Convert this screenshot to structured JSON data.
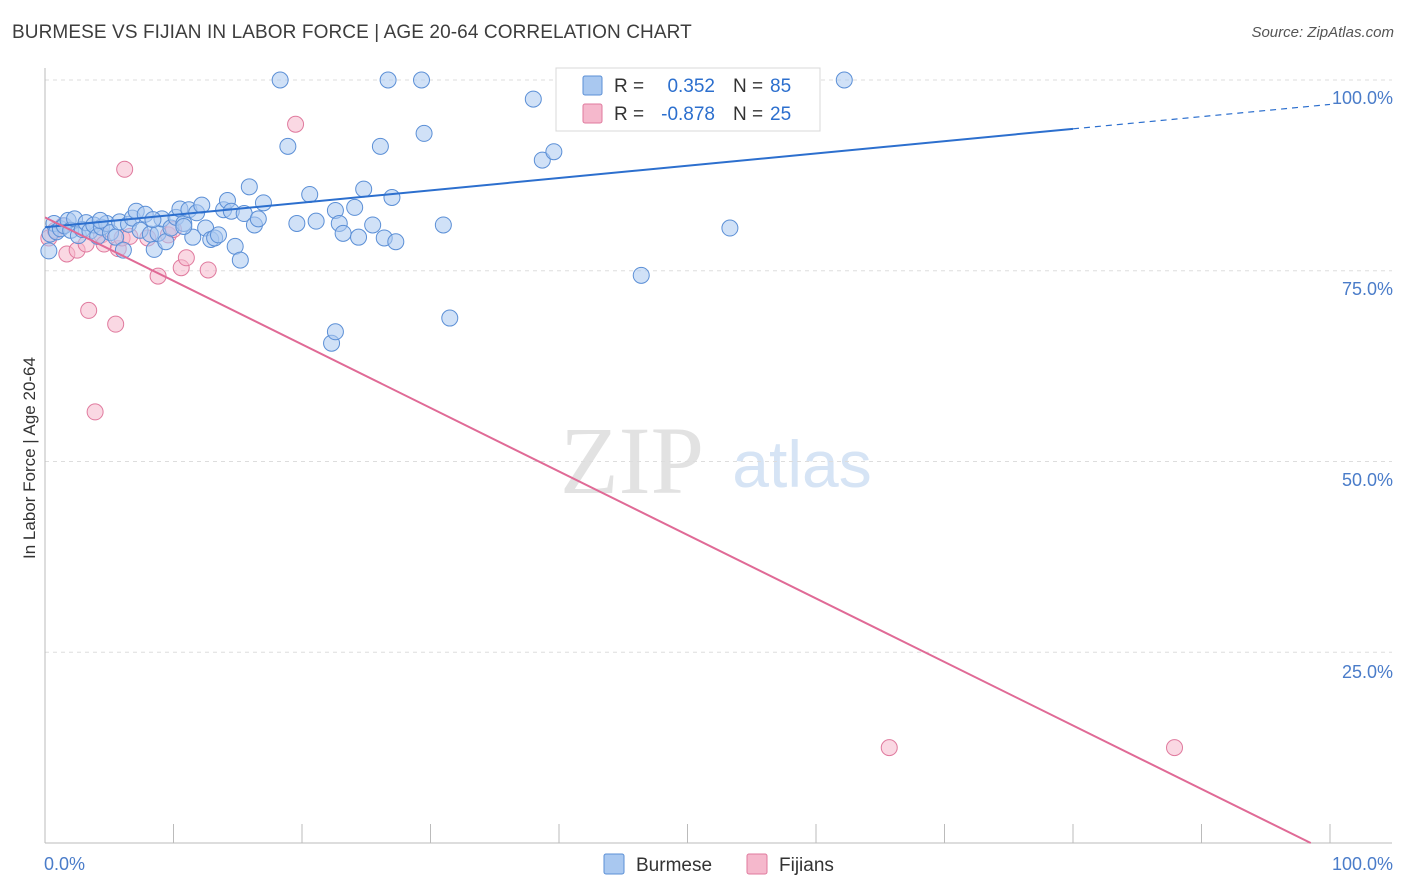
{
  "title": "BURMESE VS FIJIAN IN LABOR FORCE | AGE 20-64 CORRELATION CHART",
  "source": "Source: ZipAtlas.com",
  "watermark": {
    "zip": "ZIP",
    "atlas": "atlas"
  },
  "colors": {
    "burmese_fill": "#a9c8f0",
    "burmese_stroke": "#5b8fd6",
    "burmese_line": "#2c6fce",
    "fijian_fill": "#f5b8cc",
    "fijian_stroke": "#e07a9e",
    "fijian_line": "#e06a96",
    "tick_text": "#4a7cc9",
    "grid": "#dddddd"
  },
  "legend_top": {
    "rows": [
      {
        "r_label": "R =",
        "r_value": "0.352",
        "n_label": "N =",
        "n_value": "85"
      },
      {
        "r_label": "R =",
        "r_value": "-0.878",
        "n_label": "N =",
        "n_value": "25"
      }
    ]
  },
  "legend_bottom": [
    "Burmese",
    "Fijians"
  ],
  "chart_data": {
    "type": "scatter",
    "title": "BURMESE VS FIJIAN IN LABOR FORCE | AGE 20-64 CORRELATION CHART",
    "xlabel": "",
    "ylabel": "In Labor Force | Age 20-64",
    "xlim": [
      0,
      100
    ],
    "ylim": [
      0,
      100
    ],
    "x_tick_labels": [
      "0.0%",
      "100.0%"
    ],
    "y_ticks": [
      25,
      50,
      75,
      100
    ],
    "y_tick_labels": [
      "25.0%",
      "50.0%",
      "75.0%",
      "100.0%"
    ],
    "grid": true,
    "series": [
      {
        "name": "Burmese",
        "r": 0.352,
        "n": 85,
        "trend": {
          "x0": 0,
          "y0": 80.7,
          "x1": 80,
          "y1": 93.6,
          "dash_to_x": 100,
          "dash_to_y": 96.8
        },
        "points": [
          [
            0.4,
            79.8
          ],
          [
            0.7,
            81.2
          ],
          [
            0.9,
            80.1
          ],
          [
            1.2,
            80.5
          ],
          [
            1.5,
            80.9
          ],
          [
            1.8,
            81.6
          ],
          [
            2.0,
            80.3
          ],
          [
            2.3,
            81.8
          ],
          [
            2.6,
            79.6
          ],
          [
            2.9,
            80.4
          ],
          [
            3.2,
            81.3
          ],
          [
            3.5,
            80.2
          ],
          [
            3.8,
            81.0
          ],
          [
            4.1,
            79.5
          ],
          [
            4.4,
            80.7
          ],
          [
            4.8,
            81.2
          ],
          [
            5.1,
            80.0
          ],
          [
            5.5,
            79.4
          ],
          [
            5.8,
            81.4
          ],
          [
            6.1,
            77.7
          ],
          [
            6.5,
            81.1
          ],
          [
            6.8,
            81.9
          ],
          [
            7.1,
            82.8
          ],
          [
            7.4,
            80.3
          ],
          [
            7.8,
            82.4
          ],
          [
            8.2,
            79.8
          ],
          [
            8.5,
            77.8
          ],
          [
            8.8,
            79.9
          ],
          [
            9.1,
            81.8
          ],
          [
            9.4,
            78.8
          ],
          [
            9.8,
            80.6
          ],
          [
            10.2,
            82.0
          ],
          [
            10.5,
            83.1
          ],
          [
            10.8,
            81.2
          ],
          [
            11.2,
            83.0
          ],
          [
            11.5,
            79.4
          ],
          [
            11.8,
            82.6
          ],
          [
            12.2,
            83.6
          ],
          [
            12.5,
            80.6
          ],
          [
            12.9,
            79.1
          ],
          [
            13.2,
            79.3
          ],
          [
            13.5,
            79.7
          ],
          [
            13.9,
            83.0
          ],
          [
            14.2,
            84.2
          ],
          [
            14.5,
            82.8
          ],
          [
            14.8,
            78.2
          ],
          [
            15.2,
            76.4
          ],
          [
            15.5,
            82.5
          ],
          [
            15.9,
            86.0
          ],
          [
            16.3,
            81.0
          ],
          [
            16.6,
            81.8
          ],
          [
            17.0,
            83.9
          ],
          [
            18.3,
            100.0
          ],
          [
            18.9,
            91.3
          ],
          [
            19.6,
            81.2
          ],
          [
            20.6,
            85.0
          ],
          [
            21.1,
            81.5
          ],
          [
            22.6,
            82.9
          ],
          [
            22.9,
            81.2
          ],
          [
            23.2,
            79.9
          ],
          [
            24.1,
            83.3
          ],
          [
            24.4,
            79.4
          ],
          [
            24.8,
            85.7
          ],
          [
            25.5,
            81.0
          ],
          [
            26.1,
            91.3
          ],
          [
            26.4,
            79.3
          ],
          [
            27.0,
            84.6
          ],
          [
            27.3,
            78.8
          ],
          [
            29.3,
            100.0
          ],
          [
            29.5,
            93.0
          ],
          [
            31.0,
            81.0
          ],
          [
            31.5,
            68.8
          ],
          [
            38.0,
            97.5
          ],
          [
            38.7,
            89.5
          ],
          [
            39.6,
            90.6
          ],
          [
            46.4,
            74.4
          ],
          [
            53.3,
            80.6
          ],
          [
            62.2,
            100.0
          ],
          [
            26.7,
            100.0
          ],
          [
            22.3,
            65.5
          ],
          [
            22.6,
            67.0
          ],
          [
            10.8,
            80.8
          ],
          [
            4.3,
            81.6
          ],
          [
            8.4,
            81.7
          ],
          [
            0.3,
            77.6
          ]
        ]
      },
      {
        "name": "Fijians",
        "r": -0.878,
        "n": 25,
        "trend": {
          "x0": 0,
          "y0": 82.0,
          "x1": 98.5,
          "y1": 0
        },
        "points": [
          [
            0.3,
            79.3
          ],
          [
            0.8,
            80.3
          ],
          [
            1.4,
            80.9
          ],
          [
            1.7,
            77.2
          ],
          [
            2.5,
            77.7
          ],
          [
            3.2,
            78.5
          ],
          [
            3.4,
            69.8
          ],
          [
            3.9,
            56.5
          ],
          [
            4.4,
            79.7
          ],
          [
            4.6,
            78.5
          ],
          [
            5.5,
            68.0
          ],
          [
            5.7,
            77.9
          ],
          [
            6.0,
            79.3
          ],
          [
            6.2,
            88.3
          ],
          [
            6.6,
            79.5
          ],
          [
            8.0,
            79.3
          ],
          [
            8.8,
            74.3
          ],
          [
            9.6,
            79.7
          ],
          [
            10.0,
            80.4
          ],
          [
            10.6,
            75.4
          ],
          [
            11.0,
            76.7
          ],
          [
            12.7,
            75.1
          ],
          [
            19.5,
            94.2
          ],
          [
            65.7,
            12.5
          ],
          [
            87.9,
            12.5
          ]
        ]
      }
    ]
  }
}
